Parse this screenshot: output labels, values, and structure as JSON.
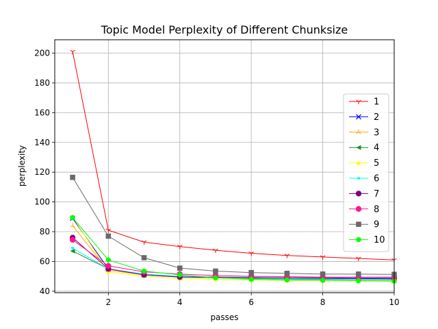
{
  "chart_data": {
    "type": "line",
    "title": "Topic Model Perplexity of Different Chunksize",
    "xlabel": "passes",
    "ylabel": "perplexity",
    "xlim": [
      0.5,
      10
    ],
    "ylim": [
      39,
      209
    ],
    "xticks": [
      2,
      4,
      6,
      8,
      10
    ],
    "yticks": [
      40,
      60,
      80,
      100,
      120,
      140,
      160,
      180,
      200
    ],
    "grid": true,
    "legend_position": "right",
    "x": [
      1,
      2,
      3,
      4,
      5,
      6,
      7,
      8,
      9,
      10
    ],
    "series": [
      {
        "name": "1",
        "color": "#ff0000",
        "marker": "tri_down",
        "values": [
          201,
          81,
          73,
          70,
          67.5,
          65.5,
          64,
          63,
          62,
          61
        ]
      },
      {
        "name": "2",
        "color": "#0000ff",
        "marker": "x",
        "values": [
          89,
          55,
          51,
          50,
          49.5,
          49,
          48.8,
          48.5,
          48.5,
          48.3
        ]
      },
      {
        "name": "3",
        "color": "#ffa500",
        "marker": "tri_up",
        "values": [
          84,
          54,
          51,
          49.5,
          49,
          48.5,
          48.3,
          48,
          48,
          47.8
        ]
      },
      {
        "name": "4",
        "color": "#228b22",
        "marker": "triangle_left",
        "values": [
          67,
          55,
          51,
          49.5,
          49,
          48.5,
          48.2,
          48,
          47.8,
          47.6
        ]
      },
      {
        "name": "5",
        "color": "#ffff00",
        "marker": "triangle_up",
        "values": [
          90,
          53,
          50,
          48.5,
          48,
          47.5,
          47.2,
          47,
          46.8,
          46.5
        ]
      },
      {
        "name": "6",
        "color": "#00ffff",
        "marker": "point",
        "values": [
          69,
          55,
          51.5,
          50,
          49.3,
          48.8,
          48.5,
          48.3,
          48,
          47.8
        ]
      },
      {
        "name": "7",
        "color": "#800080",
        "marker": "circle",
        "values": [
          76,
          55,
          51,
          49.5,
          49.5,
          49.3,
          49,
          49,
          48.8,
          48.8
        ]
      },
      {
        "name": "8",
        "color": "#ff1493",
        "marker": "circle",
        "values": [
          74.5,
          57,
          53,
          51.5,
          50.5,
          50,
          49.8,
          49.5,
          49.5,
          49.5
        ]
      },
      {
        "name": "9",
        "color": "#696969",
        "marker": "square",
        "values": [
          116.5,
          77,
          62.5,
          55.5,
          53.5,
          52.5,
          52,
          51.5,
          51.5,
          51.3
        ]
      },
      {
        "name": "10",
        "color": "#00ff00",
        "marker": "hexagon",
        "values": [
          89.5,
          61,
          53.5,
          51,
          49,
          48,
          47.5,
          47.3,
          47,
          46.8
        ]
      }
    ]
  }
}
